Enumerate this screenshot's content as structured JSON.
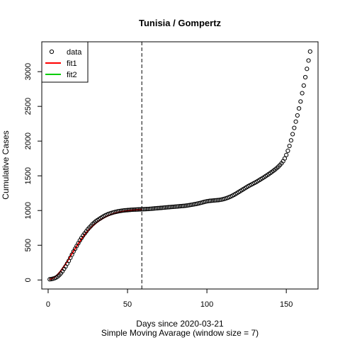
{
  "chart_data": {
    "type": "scatter",
    "title": "Tunisia / Gompertz",
    "xlabel": "Days since 2020-03-21",
    "xlabel2": "Simple Moving Avarage (window size = 7)",
    "ylabel": "Cumulative Cases",
    "xlim": [
      -4,
      170
    ],
    "ylim": [
      -130,
      3430
    ],
    "x_ticks": [
      0,
      50,
      100,
      150
    ],
    "y_ticks": [
      0,
      500,
      1000,
      1500,
      2000,
      2500,
      3000
    ],
    "vline_x": 59,
    "grid": false,
    "legend_position": "top-left",
    "legend": [
      {
        "label": "data",
        "style": "circle",
        "color": "#000000"
      },
      {
        "label": "fit1",
        "style": "line",
        "color": "#ff0000"
      },
      {
        "label": "fit2",
        "style": "line",
        "color": "#00cc00"
      }
    ],
    "data_points": [
      [
        1,
        10
      ],
      [
        2,
        13
      ],
      [
        3,
        18
      ],
      [
        4,
        25
      ],
      [
        5,
        35
      ],
      [
        6,
        50
      ],
      [
        7,
        70
      ],
      [
        8,
        95
      ],
      [
        9,
        125
      ],
      [
        10,
        160
      ],
      [
        11,
        195
      ],
      [
        12,
        235
      ],
      [
        13,
        275
      ],
      [
        14,
        320
      ],
      [
        15,
        365
      ],
      [
        16,
        410
      ],
      [
        17,
        450
      ],
      [
        18,
        490
      ],
      [
        19,
        530
      ],
      [
        20,
        570
      ],
      [
        21,
        605
      ],
      [
        22,
        640
      ],
      [
        23,
        670
      ],
      [
        24,
        700
      ],
      [
        25,
        730
      ],
      [
        26,
        755
      ],
      [
        27,
        780
      ],
      [
        28,
        805
      ],
      [
        29,
        825
      ],
      [
        30,
        845
      ],
      [
        31,
        860
      ],
      [
        32,
        875
      ],
      [
        33,
        890
      ],
      [
        34,
        905
      ],
      [
        35,
        918
      ],
      [
        36,
        930
      ],
      [
        37,
        940
      ],
      [
        38,
        950
      ],
      [
        39,
        958
      ],
      [
        40,
        965
      ],
      [
        41,
        972
      ],
      [
        42,
        978
      ],
      [
        43,
        983
      ],
      [
        44,
        988
      ],
      [
        45,
        992
      ],
      [
        46,
        996
      ],
      [
        47,
        999
      ],
      [
        48,
        1002
      ],
      [
        49,
        1004
      ],
      [
        50,
        1006
      ],
      [
        51,
        1008
      ],
      [
        52,
        1010
      ],
      [
        53,
        1012
      ],
      [
        54,
        1013
      ],
      [
        55,
        1014
      ],
      [
        56,
        1015
      ],
      [
        57,
        1016
      ],
      [
        58,
        1017
      ],
      [
        59,
        1018
      ],
      [
        60,
        1019
      ],
      [
        61,
        1020
      ],
      [
        62,
        1021
      ],
      [
        63,
        1022
      ],
      [
        64,
        1024
      ],
      [
        65,
        1026
      ],
      [
        66,
        1028
      ],
      [
        67,
        1030
      ],
      [
        68,
        1032
      ],
      [
        69,
        1034
      ],
      [
        70,
        1036
      ],
      [
        71,
        1038
      ],
      [
        72,
        1040
      ],
      [
        73,
        1042
      ],
      [
        74,
        1044
      ],
      [
        75,
        1046
      ],
      [
        76,
        1048
      ],
      [
        77,
        1050
      ],
      [
        78,
        1052
      ],
      [
        79,
        1054
      ],
      [
        80,
        1056
      ],
      [
        81,
        1058
      ],
      [
        82,
        1060
      ],
      [
        83,
        1062
      ],
      [
        84,
        1064
      ],
      [
        85,
        1066
      ],
      [
        86,
        1068
      ],
      [
        87,
        1071
      ],
      [
        88,
        1074
      ],
      [
        89,
        1078
      ],
      [
        90,
        1082
      ],
      [
        91,
        1086
      ],
      [
        92,
        1090
      ],
      [
        93,
        1094
      ],
      [
        94,
        1099
      ],
      [
        95,
        1104
      ],
      [
        96,
        1110
      ],
      [
        97,
        1116
      ],
      [
        98,
        1122
      ],
      [
        99,
        1128
      ],
      [
        100,
        1133
      ],
      [
        101,
        1137
      ],
      [
        102,
        1140
      ],
      [
        103,
        1142
      ],
      [
        104,
        1144
      ],
      [
        105,
        1146
      ],
      [
        106,
        1148
      ],
      [
        107,
        1150
      ],
      [
        108,
        1153
      ],
      [
        109,
        1157
      ],
      [
        110,
        1162
      ],
      [
        111,
        1168
      ],
      [
        112,
        1175
      ],
      [
        113,
        1183
      ],
      [
        114,
        1192
      ],
      [
        115,
        1202
      ],
      [
        116,
        1213
      ],
      [
        117,
        1225
      ],
      [
        118,
        1238
      ],
      [
        119,
        1252
      ],
      [
        120,
        1266
      ],
      [
        121,
        1280
      ],
      [
        122,
        1294
      ],
      [
        123,
        1308
      ],
      [
        124,
        1322
      ],
      [
        125,
        1336
      ],
      [
        126,
        1350
      ],
      [
        127,
        1362
      ],
      [
        128,
        1374
      ],
      [
        129,
        1386
      ],
      [
        130,
        1398
      ],
      [
        131,
        1410
      ],
      [
        132,
        1424
      ],
      [
        133,
        1438
      ],
      [
        134,
        1452
      ],
      [
        135,
        1466
      ],
      [
        136,
        1480
      ],
      [
        137,
        1495
      ],
      [
        138,
        1510
      ],
      [
        139,
        1525
      ],
      [
        140,
        1541
      ],
      [
        141,
        1557
      ],
      [
        142,
        1574
      ],
      [
        143,
        1592
      ],
      [
        144,
        1611
      ],
      [
        145,
        1632
      ],
      [
        146,
        1655
      ],
      [
        147,
        1680
      ],
      [
        148,
        1710
      ],
      [
        149,
        1750
      ],
      [
        150,
        1800
      ],
      [
        151,
        1860
      ],
      [
        152,
        1930
      ],
      [
        153,
        2010
      ],
      [
        154,
        2100
      ],
      [
        155,
        2190
      ],
      [
        156,
        2280
      ],
      [
        157,
        2370
      ],
      [
        158,
        2470
      ],
      [
        159,
        2570
      ],
      [
        160,
        2690
      ],
      [
        161,
        2800
      ],
      [
        162,
        2920
      ],
      [
        163,
        3040
      ],
      [
        164,
        3160
      ],
      [
        165,
        3290
      ]
    ],
    "fit1_points": [
      [
        1,
        8
      ],
      [
        2,
        15
      ],
      [
        3,
        25
      ],
      [
        4,
        40
      ],
      [
        5,
        58
      ],
      [
        6,
        80
      ],
      [
        7,
        105
      ],
      [
        8,
        133
      ],
      [
        9,
        165
      ],
      [
        10,
        198
      ],
      [
        11,
        232
      ],
      [
        12,
        268
      ],
      [
        13,
        305
      ],
      [
        14,
        342
      ],
      [
        15,
        379
      ],
      [
        16,
        416
      ],
      [
        17,
        452
      ],
      [
        18,
        488
      ],
      [
        19,
        522
      ],
      [
        20,
        556
      ],
      [
        21,
        588
      ],
      [
        22,
        619
      ],
      [
        23,
        649
      ],
      [
        24,
        677
      ],
      [
        25,
        704
      ],
      [
        26,
        729
      ],
      [
        27,
        753
      ],
      [
        28,
        775
      ],
      [
        29,
        796
      ],
      [
        30,
        816
      ],
      [
        31,
        834
      ],
      [
        32,
        851
      ],
      [
        33,
        866
      ],
      [
        34,
        880
      ],
      [
        35,
        894
      ],
      [
        36,
        906
      ],
      [
        37,
        917
      ],
      [
        38,
        927
      ],
      [
        39,
        936
      ],
      [
        40,
        945
      ],
      [
        41,
        952
      ],
      [
        42,
        960
      ],
      [
        43,
        966
      ],
      [
        44,
        972
      ],
      [
        45,
        977
      ],
      [
        46,
        982
      ],
      [
        47,
        987
      ],
      [
        48,
        991
      ],
      [
        49,
        994
      ],
      [
        50,
        998
      ],
      [
        51,
        1001
      ],
      [
        52,
        1003
      ],
      [
        53,
        1006
      ],
      [
        54,
        1008
      ],
      [
        55,
        1010
      ],
      [
        56,
        1012
      ],
      [
        57,
        1013
      ],
      [
        58,
        1015
      ],
      [
        59,
        1016
      ]
    ]
  }
}
